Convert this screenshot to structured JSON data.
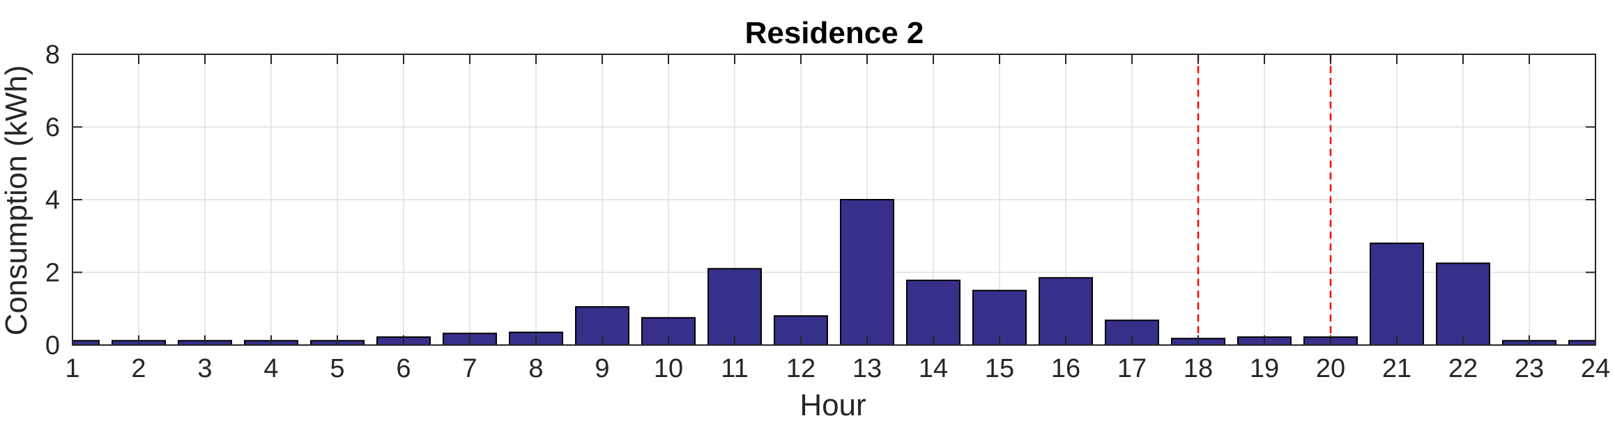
{
  "chart_data": {
    "type": "bar",
    "title": "Residence 2",
    "xlabel": "Hour",
    "ylabel": "Consumption (kWh)",
    "x": [
      1,
      2,
      3,
      4,
      5,
      6,
      7,
      8,
      9,
      10,
      11,
      12,
      13,
      14,
      15,
      16,
      17,
      18,
      19,
      20,
      21,
      22,
      23,
      24
    ],
    "categories": [
      "1",
      "2",
      "3",
      "4",
      "5",
      "6",
      "7",
      "8",
      "9",
      "10",
      "11",
      "12",
      "13",
      "14",
      "15",
      "16",
      "17",
      "18",
      "19",
      "20",
      "21",
      "22",
      "23",
      "24"
    ],
    "values": [
      0.12,
      0.12,
      0.12,
      0.12,
      0.12,
      0.22,
      0.32,
      0.35,
      1.05,
      0.75,
      2.1,
      0.8,
      4.0,
      1.78,
      1.5,
      1.85,
      0.68,
      0.18,
      0.22,
      0.22,
      2.8,
      2.25,
      0.12,
      0.12
    ],
    "xlim": [
      1,
      24
    ],
    "ylim": [
      0,
      8
    ],
    "yticks": [
      0,
      2,
      4,
      6,
      8
    ],
    "grid": true,
    "bar_color": "#37308a",
    "bar_edge_color": "#000000",
    "vlines": [
      {
        "x": 18,
        "color": "#ff0000",
        "style": "dashed"
      },
      {
        "x": 20,
        "color": "#ff0000",
        "style": "dashed"
      }
    ]
  }
}
